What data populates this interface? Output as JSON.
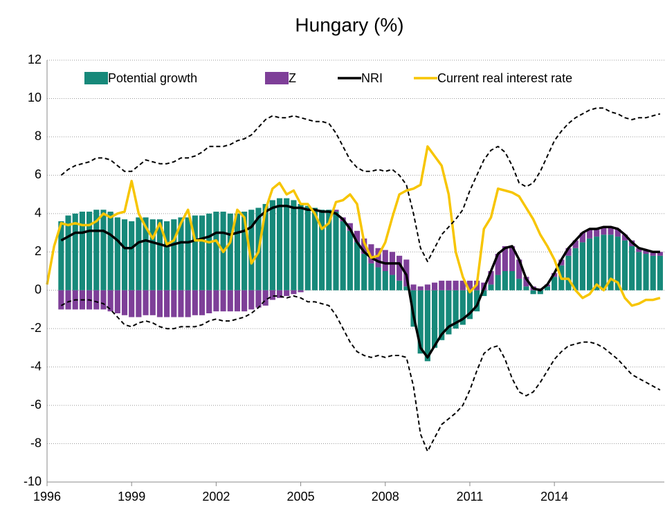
{
  "chart_data": {
    "type": "bar",
    "title": "Hungary (%)",
    "x": [
      1996,
      1996.25,
      1996.5,
      1996.75,
      1997,
      1997.25,
      1997.5,
      1997.75,
      1998,
      1998.25,
      1998.5,
      1998.75,
      1999,
      1999.25,
      1999.5,
      1999.75,
      2000,
      2000.25,
      2000.5,
      2000.75,
      2001,
      2001.25,
      2001.5,
      2001.75,
      2002,
      2002.25,
      2002.5,
      2002.75,
      2003,
      2003.25,
      2003.5,
      2003.75,
      2004,
      2004.25,
      2004.5,
      2004.75,
      2005,
      2005.25,
      2005.5,
      2005.75,
      2006,
      2006.25,
      2006.5,
      2006.75,
      2007,
      2007.25,
      2007.5,
      2007.75,
      2008,
      2008.25,
      2008.5,
      2008.75,
      2009,
      2009.25,
      2009.5,
      2009.75,
      2010,
      2010.25,
      2010.5,
      2010.75,
      2011,
      2011.25,
      2011.5,
      2011.75,
      2012,
      2012.25,
      2012.5,
      2012.75,
      2013,
      2013.25,
      2013.5,
      2013.75,
      2014,
      2014.25,
      2014.5,
      2014.75,
      2015,
      2015.25,
      2015.5,
      2015.75,
      2016,
      2016.25,
      2016.5,
      2016.75,
      2017,
      2017.25,
      2017.5,
      2017.75
    ],
    "series": [
      {
        "name": "Potential growth",
        "type": "bar",
        "color": "#17897a",
        "values": [
          null,
          null,
          3.6,
          3.9,
          4.0,
          4.1,
          4.1,
          4.2,
          4.2,
          4.1,
          3.8,
          3.7,
          3.6,
          3.8,
          3.8,
          3.7,
          3.7,
          3.6,
          3.7,
          3.8,
          3.8,
          3.9,
          3.9,
          4.0,
          4.1,
          4.1,
          4.0,
          4.0,
          4.1,
          4.2,
          4.3,
          4.5,
          4.7,
          4.8,
          4.8,
          4.7,
          4.5,
          4.4,
          4.3,
          4.2,
          4.2,
          4.1,
          3.6,
          3.1,
          2.5,
          1.9,
          1.4,
          1.2,
          1.0,
          0.8,
          0.5,
          0.2,
          -1.9,
          -3.3,
          -3.7,
          -3.0,
          -2.6,
          -2.3,
          -2.0,
          -1.8,
          -1.5,
          -1.1,
          -0.3,
          0.3,
          0.8,
          1.0,
          1.0,
          0.6,
          0.2,
          -0.2,
          -0.2,
          0.2,
          0.7,
          1.3,
          1.8,
          2.2,
          2.5,
          2.7,
          2.8,
          2.9,
          2.9,
          2.8,
          2.6,
          2.3,
          2.0,
          1.9,
          1.8,
          1.8
        ]
      },
      {
        "name": "Z",
        "type": "bar",
        "color": "#7e3f98",
        "values": [
          null,
          null,
          -1.0,
          -1.0,
          -1.0,
          -1.0,
          -1.0,
          -1.0,
          -1.0,
          -1.1,
          -1.2,
          -1.3,
          -1.4,
          -1.4,
          -1.3,
          -1.3,
          -1.4,
          -1.4,
          -1.4,
          -1.4,
          -1.4,
          -1.3,
          -1.3,
          -1.2,
          -1.1,
          -1.1,
          -1.1,
          -1.1,
          -1.1,
          -1.0,
          -0.9,
          -0.8,
          -0.5,
          -0.4,
          -0.3,
          -0.2,
          -0.1,
          0.0,
          0.0,
          0.0,
          0.0,
          0.1,
          0.2,
          0.4,
          0.6,
          0.8,
          1.0,
          1.0,
          1.1,
          1.2,
          1.3,
          1.4,
          0.3,
          0.2,
          0.3,
          0.4,
          0.5,
          0.5,
          0.5,
          0.5,
          0.5,
          0.5,
          0.4,
          0.7,
          1.1,
          1.3,
          1.3,
          1.0,
          0.5,
          0.2,
          0.1,
          0.1,
          0.2,
          0.3,
          0.4,
          0.4,
          0.5,
          0.5,
          0.4,
          0.4,
          0.4,
          0.4,
          0.3,
          0.3,
          0.2,
          0.2,
          0.2,
          0.2
        ]
      },
      {
        "name": "NRI",
        "type": "line",
        "color": "#000000",
        "values": [
          null,
          null,
          2.6,
          2.8,
          3.0,
          3.0,
          3.1,
          3.1,
          3.1,
          2.9,
          2.6,
          2.2,
          2.2,
          2.5,
          2.6,
          2.5,
          2.4,
          2.3,
          2.4,
          2.5,
          2.5,
          2.6,
          2.7,
          2.8,
          3.0,
          3.0,
          2.9,
          3.0,
          3.1,
          3.3,
          3.8,
          4.1,
          4.3,
          4.4,
          4.4,
          4.3,
          4.3,
          4.2,
          4.2,
          4.1,
          4.1,
          4.0,
          3.7,
          3.2,
          2.5,
          2.0,
          1.7,
          1.5,
          1.4,
          1.4,
          1.4,
          0.8,
          -1.3,
          -3.0,
          -3.5,
          -2.9,
          -2.3,
          -1.9,
          -1.7,
          -1.5,
          -1.2,
          -0.8,
          0.1,
          1.0,
          1.9,
          2.2,
          2.3,
          1.6,
          0.6,
          0.1,
          0.0,
          0.3,
          0.9,
          1.6,
          2.2,
          2.6,
          3.0,
          3.2,
          3.2,
          3.3,
          3.3,
          3.2,
          2.9,
          2.5,
          2.2,
          2.1,
          2.0,
          2.0
        ]
      },
      {
        "name": "Current real interest rate",
        "type": "line",
        "color": "#f7c500",
        "values": [
          0.3,
          2.3,
          3.5,
          3.4,
          3.5,
          3.4,
          3.4,
          3.6,
          4.0,
          3.8,
          4.0,
          4.1,
          5.7,
          4.0,
          3.3,
          2.7,
          3.5,
          2.4,
          2.6,
          3.5,
          4.2,
          2.6,
          2.6,
          2.5,
          2.6,
          2.0,
          2.5,
          4.2,
          3.8,
          1.4,
          2.0,
          4.2,
          5.3,
          5.6,
          5.0,
          5.2,
          4.5,
          4.5,
          4.0,
          3.2,
          3.5,
          4.6,
          4.7,
          5.0,
          4.5,
          2.5,
          1.7,
          1.8,
          2.5,
          3.8,
          5.0,
          5.2,
          5.3,
          5.5,
          7.5,
          7.0,
          6.5,
          5.0,
          2.0,
          0.7,
          -0.1,
          0.3,
          3.2,
          3.8,
          5.3,
          5.2,
          5.1,
          4.9,
          4.3,
          3.7,
          2.9,
          2.3,
          1.6,
          0.6,
          0.6,
          0.0,
          -0.4,
          -0.2,
          0.3,
          0.0,
          0.6,
          0.4,
          -0.4,
          -0.8,
          -0.7,
          -0.5,
          -0.5,
          -0.4
        ]
      },
      {
        "type": "line",
        "dash": true,
        "color": "#000000",
        "values": [
          null,
          null,
          6.0,
          6.3,
          6.5,
          6.6,
          6.7,
          6.9,
          6.9,
          6.8,
          6.5,
          6.2,
          6.2,
          6.5,
          6.8,
          6.7,
          6.6,
          6.6,
          6.7,
          6.9,
          6.9,
          7.0,
          7.2,
          7.5,
          7.5,
          7.5,
          7.6,
          7.8,
          7.9,
          8.1,
          8.5,
          8.9,
          9.1,
          9.0,
          9.0,
          9.1,
          9.0,
          8.9,
          8.8,
          8.8,
          8.7,
          8.2,
          7.5,
          6.8,
          6.4,
          6.2,
          6.2,
          6.3,
          6.2,
          6.3,
          6.0,
          5.5,
          4.0,
          2.2,
          1.5,
          2.2,
          2.9,
          3.3,
          3.7,
          4.2,
          5.2,
          6.0,
          6.8,
          7.3,
          7.5,
          7.2,
          6.5,
          5.6,
          5.4,
          5.6,
          6.2,
          7.0,
          7.8,
          8.3,
          8.7,
          9.0,
          9.2,
          9.4,
          9.5,
          9.5,
          9.3,
          9.2,
          9.0,
          8.9,
          9.0,
          9.0,
          9.1,
          9.2
        ]
      },
      {
        "type": "line",
        "dash": true,
        "color": "#000000",
        "values": [
          null,
          null,
          -0.8,
          -0.6,
          -0.5,
          -0.5,
          -0.5,
          -0.6,
          -0.7,
          -1.0,
          -1.4,
          -1.8,
          -1.9,
          -1.7,
          -1.6,
          -1.7,
          -1.9,
          -2.0,
          -2.0,
          -1.9,
          -1.9,
          -1.9,
          -1.8,
          -1.6,
          -1.5,
          -1.6,
          -1.6,
          -1.5,
          -1.4,
          -1.2,
          -0.9,
          -0.5,
          -0.3,
          -0.3,
          -0.4,
          -0.3,
          -0.4,
          -0.6,
          -0.6,
          -0.7,
          -0.8,
          -1.3,
          -2.0,
          -2.7,
          -3.2,
          -3.4,
          -3.5,
          -3.4,
          -3.5,
          -3.4,
          -3.4,
          -3.5,
          -5.0,
          -7.5,
          -8.4,
          -7.7,
          -7.0,
          -6.7,
          -6.4,
          -6.0,
          -5.2,
          -4.2,
          -3.3,
          -3.0,
          -2.9,
          -3.6,
          -4.6,
          -5.3,
          -5.5,
          -5.3,
          -4.8,
          -4.2,
          -3.6,
          -3.2,
          -2.9,
          -2.8,
          -2.7,
          -2.7,
          -2.8,
          -3.0,
          -3.3,
          -3.6,
          -4.0,
          -4.4,
          -4.6,
          -4.8,
          -5.0,
          -5.2
        ]
      }
    ],
    "xlim": [
      1996,
      2017.9
    ],
    "xticks": [
      1996,
      1999,
      2002,
      2005,
      2008,
      2011,
      2014
    ],
    "ylim": [
      -10,
      12
    ],
    "yticks": [
      -10,
      -8,
      -6,
      -4,
      -2,
      0,
      2,
      4,
      6,
      8,
      10,
      12
    ],
    "grid": true,
    "legend": "top"
  }
}
